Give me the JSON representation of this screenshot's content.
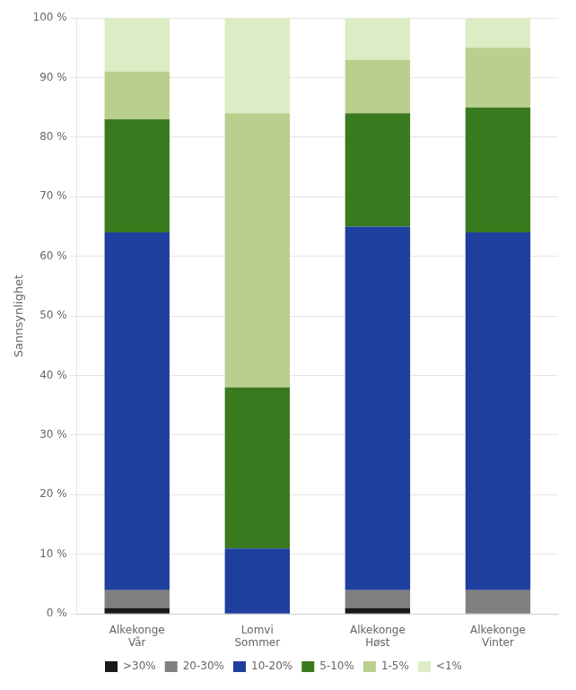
{
  "chart_data": {
    "type": "bar",
    "stacked": true,
    "categories": [
      [
        "Alkekonge",
        "Vår"
      ],
      [
        "Lomvi",
        "Sommer"
      ],
      [
        "Alkekonge",
        "Høst"
      ],
      [
        "Alkekonge",
        "Vinter"
      ]
    ],
    "series": [
      {
        "name": ">30%",
        "color": "#1a1a1a",
        "values": [
          1,
          0,
          1,
          0
        ]
      },
      {
        "name": "20-30%",
        "color": "#808080",
        "values": [
          3,
          0,
          3,
          4
        ]
      },
      {
        "name": "10-20%",
        "color": "#1f3f9e",
        "values": [
          60,
          11,
          61,
          60
        ]
      },
      {
        "name": "5-10%",
        "color": "#3a7a1e",
        "values": [
          19,
          27,
          19,
          21
        ]
      },
      {
        "name": "1-5%",
        "color": "#b8cf8e",
        "values": [
          8,
          46,
          9,
          10
        ]
      },
      {
        "name": "<1%",
        "color": "#dcecc4",
        "values": [
          9,
          16,
          7,
          5
        ]
      }
    ],
    "ylabel": "Sannsynlighet",
    "ylim": [
      0,
      100
    ],
    "yticks": [
      {
        "value": 0,
        "label": "0 %"
      },
      {
        "value": 10,
        "label": "10 %"
      },
      {
        "value": 20,
        "label": "20 %"
      },
      {
        "value": 30,
        "label": "30 %"
      },
      {
        "value": 40,
        "label": "40 %"
      },
      {
        "value": 50,
        "label": "50 %"
      },
      {
        "value": 60,
        "label": "60 %"
      },
      {
        "value": 70,
        "label": "70 %"
      },
      {
        "value": 80,
        "label": "80 %"
      },
      {
        "value": 90,
        "label": "90 %"
      },
      {
        "value": 100,
        "label": "100 %"
      }
    ],
    "grid": true,
    "legend": "bottom"
  }
}
